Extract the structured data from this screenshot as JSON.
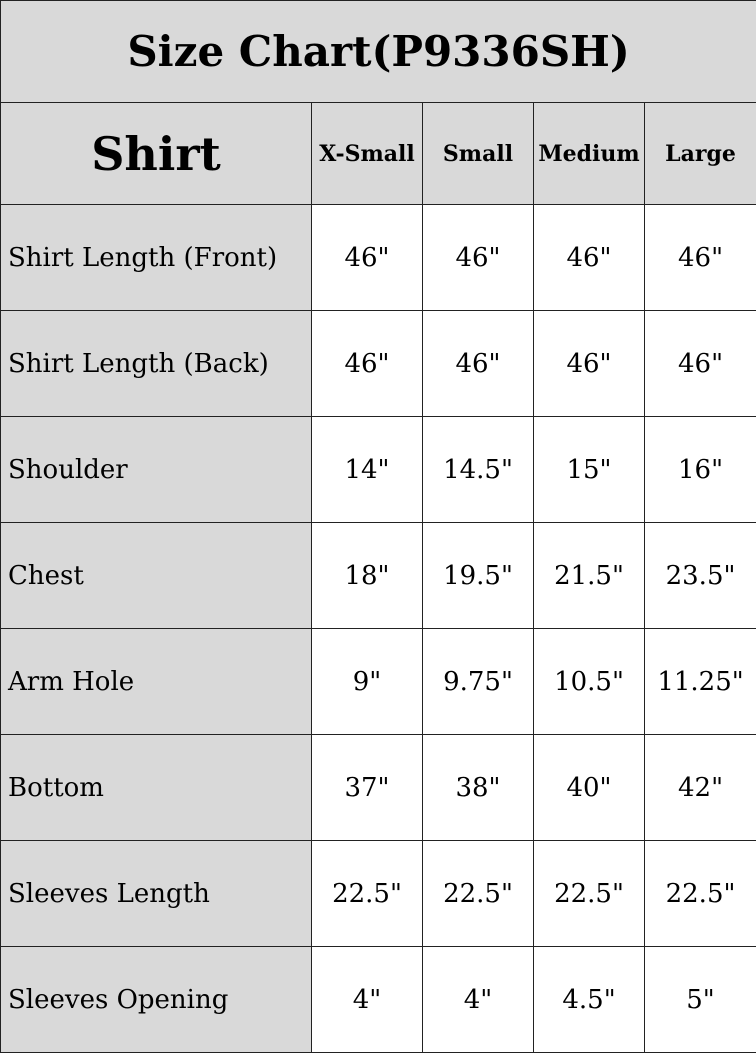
{
  "title": "Size Chart(P9336SH)",
  "header": {
    "section": "Shirt",
    "sizes": [
      "X-Small",
      "Small",
      "Medium",
      "Large"
    ]
  },
  "rows": [
    {
      "label": "Shirt Length (Front)",
      "values": [
        "46\"",
        "46\"",
        "46\"",
        "46\""
      ]
    },
    {
      "label": "Shirt Length (Back)",
      "values": [
        "46\"",
        "46\"",
        "46\"",
        "46\""
      ]
    },
    {
      "label": "Shoulder",
      "values": [
        "14\"",
        "14.5\"",
        "15\"",
        "16\""
      ]
    },
    {
      "label": "Chest",
      "values": [
        "18\"",
        "19.5\"",
        "21.5\"",
        "23.5\""
      ]
    },
    {
      "label": "Arm Hole",
      "values": [
        "9\"",
        "9.75\"",
        "10.5\"",
        "11.25\""
      ]
    },
    {
      "label": "Bottom",
      "values": [
        "37\"",
        "38\"",
        "40\"",
        "42\""
      ]
    },
    {
      "label": "Sleeves Length",
      "values": [
        "22.5\"",
        "22.5\"",
        "22.5\"",
        "22.5\""
      ]
    },
    {
      "label": "Sleeves Opening",
      "values": [
        "4\"",
        "4\"",
        "4.5\"",
        "5\""
      ]
    }
  ],
  "colors": {
    "header_bg": "#d9d9d9",
    "cell_bg": "#ffffff",
    "border": "#222222"
  }
}
